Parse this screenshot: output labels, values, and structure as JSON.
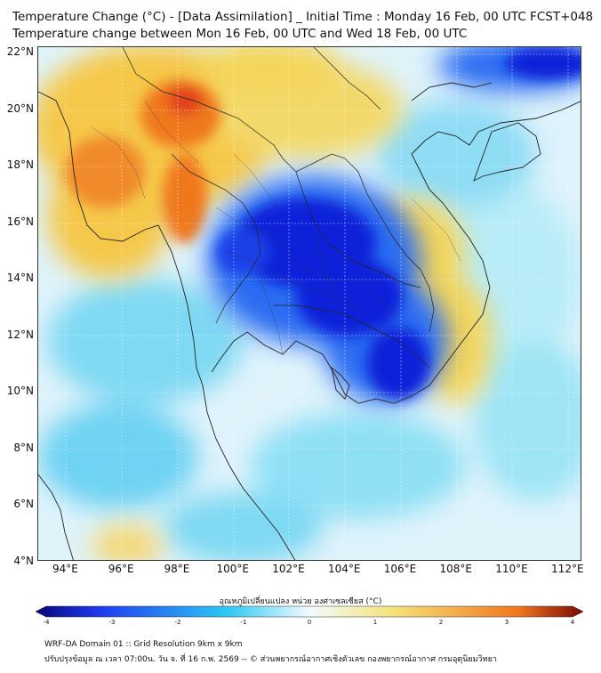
{
  "title": {
    "line1": "Temperature Change (°C) - [Data Assimilation] _ Initial Time : Monday 16 Feb, 00 UTC FCST+048",
    "line2": "Temperature change between Mon 16 Feb, 00 UTC and Wed 18 Feb, 00 UTC"
  },
  "map": {
    "region": "Mainland Southeast Asia",
    "lon_range": [
      93,
      112.5
    ],
    "lat_range": [
      4,
      22.2
    ],
    "lat_ticks": [
      {
        "value": 22,
        "label": "22°N"
      },
      {
        "value": 20,
        "label": "20°N"
      },
      {
        "value": 18,
        "label": "18°N"
      },
      {
        "value": 16,
        "label": "16°N"
      },
      {
        "value": 14,
        "label": "14°N"
      },
      {
        "value": 12,
        "label": "12°N"
      },
      {
        "value": 10,
        "label": "10°N"
      },
      {
        "value": 8,
        "label": "8°N"
      },
      {
        "value": 6,
        "label": "6°N"
      },
      {
        "value": 4,
        "label": "4°N"
      }
    ],
    "lon_ticks": [
      {
        "value": 94,
        "label": "94°E"
      },
      {
        "value": 96,
        "label": "96°E"
      },
      {
        "value": 98,
        "label": "98°E"
      },
      {
        "value": 100,
        "label": "100°E"
      },
      {
        "value": 102,
        "label": "102°E"
      },
      {
        "value": 104,
        "label": "104°E"
      },
      {
        "value": 106,
        "label": "106°E"
      },
      {
        "value": 108,
        "label": "108°E"
      },
      {
        "value": 110,
        "label": "110°E"
      },
      {
        "value": 112,
        "label": "112°E"
      }
    ],
    "features": [
      {
        "name": "Myanmar north warming",
        "lon": 98,
        "lat": 20.2,
        "change": 3.2
      },
      {
        "name": "Myanmar west warming",
        "lon": 95,
        "lat": 18.5,
        "change": 2.8
      },
      {
        "name": "Myanmar south warming",
        "lon": 98.2,
        "lat": 16.8,
        "change": 2.6
      },
      {
        "name": "Northeast Thailand cooling",
        "lon": 103,
        "lat": 15.2,
        "change": -3.3
      },
      {
        "name": "Cambodia cooling",
        "lon": 104.5,
        "lat": 13.3,
        "change": -2.9
      },
      {
        "name": "Southern Vietnam cooling",
        "lon": 106,
        "lat": 11,
        "change": -3.0
      },
      {
        "name": "South China Sea cooling",
        "lon": 111.5,
        "lat": 21.8,
        "change": -2.6
      }
    ]
  },
  "colorbar": {
    "title": "อุณหภูมิเปลี่ยนแปลง หน่วย องศาเซลเซียส (°C)",
    "min": -4,
    "max": 4,
    "ticks": [
      "-4",
      "-3",
      "-2",
      "-1",
      "0",
      "1",
      "2",
      "3",
      "4"
    ],
    "colors": {
      "cold_extreme": "#06067a",
      "cold": "#1e3cf0",
      "cool": "#2dc8f5",
      "neutral": "#f2fbff",
      "warm": "#f5e37a",
      "hot": "#f0781e",
      "hot_extreme": "#7a0606"
    }
  },
  "footer": {
    "line1": "WRF-DA Domain 01 :: Grid Resolution 9km x 9km",
    "line2": "ปรับปรุงข้อมูล ณ เวลา 07:00น. วัน จ. ที่ 16 ก.พ. 2569 -- © ส่วนพยากรณ์อากาศเชิงตัวเลข กองพยากรณ์อากาศ กรมอุตุนิยมวิทยา"
  }
}
